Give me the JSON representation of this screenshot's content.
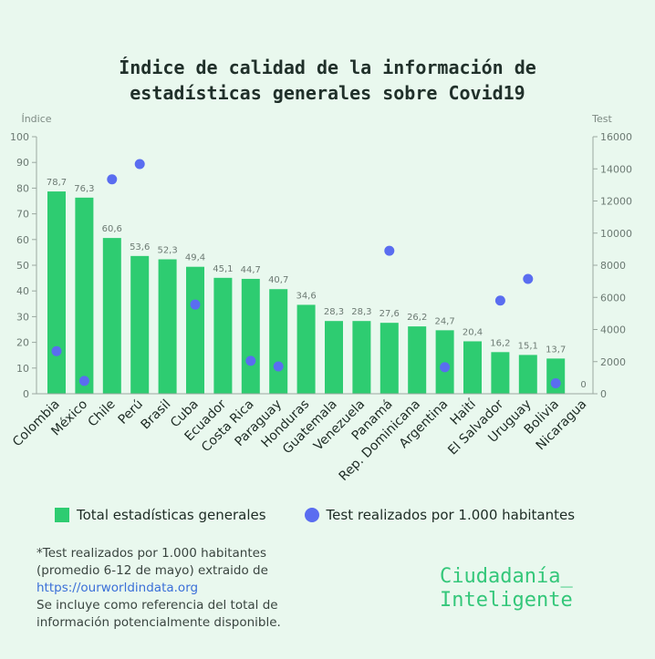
{
  "title_lines": [
    "Índice de calidad de la información de",
    "estadísticas generales sobre Covid19"
  ],
  "legend": {
    "bars": "Total estadísticas generales",
    "dots": "Test realizados por 1.000 habitantes"
  },
  "footnote": {
    "line1": "*Test realizados por 1.000 habitantes",
    "line2": "(promedio 6-12 de mayo) extraido de",
    "link": "https://ourworldindata.org",
    "line3": "Se incluye como referencia del total de",
    "line4": "información potencialmente disponible."
  },
  "brand": {
    "line1": "Ciudadanía_",
    "line2": "Inteligente"
  },
  "colors": {
    "bar": "#2ecc71",
    "dot": "#5a6df0",
    "axis": "#9aa8a0",
    "text": "#1d2b24"
  },
  "chart_data": {
    "type": "bar",
    "categories": [
      "Colombia",
      "México",
      "Chile",
      "Perú",
      "Brasil",
      "Cuba",
      "Ecuador",
      "Costa Rica",
      "Paraguay",
      "Honduras",
      "Guatemala",
      "Venezuela",
      "Panamá",
      "Rep. Dominicana",
      "Argentina",
      "Haití",
      "El Salvador",
      "Uruguay",
      "Bolivia",
      "Nicaragua"
    ],
    "series": [
      {
        "name": "Total estadísticas generales",
        "axis": "left",
        "values": [
          78.7,
          76.3,
          60.6,
          53.6,
          52.3,
          49.4,
          45.1,
          44.7,
          40.7,
          34.6,
          28.3,
          28.3,
          27.6,
          26.2,
          24.7,
          20.4,
          16.2,
          15.1,
          13.7,
          0
        ],
        "labels": [
          "78,7",
          "76,3",
          "60,6",
          "53,6",
          "52,3",
          "49,4",
          "45,1",
          "44,7",
          "40,7",
          "34,6",
          "28,3",
          "28,3",
          "27,6",
          "26,2",
          "24,7",
          "20,4",
          "16,2",
          "15,1",
          "13,7",
          "0"
        ]
      },
      {
        "name": "Test realizados por 1.000 habitantes",
        "axis": "right",
        "type": "scatter",
        "values": [
          2650,
          800,
          13350,
          14300,
          null,
          5550,
          null,
          2050,
          1700,
          null,
          null,
          null,
          8900,
          null,
          1650,
          null,
          5800,
          7150,
          650,
          null
        ]
      }
    ],
    "ylabel": "Índice",
    "y2label": "Test",
    "ylim": [
      0,
      100
    ],
    "y2lim": [
      0,
      16000
    ],
    "yticks": [
      0,
      10,
      20,
      30,
      40,
      50,
      60,
      70,
      80,
      90,
      100
    ],
    "y2ticks": [
      0,
      2000,
      4000,
      6000,
      8000,
      10000,
      12000,
      14000,
      16000
    ]
  }
}
